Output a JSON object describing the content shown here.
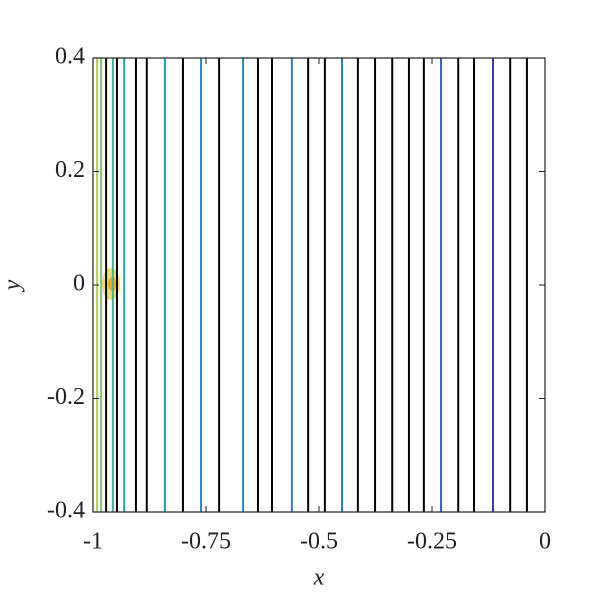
{
  "chart_data": {
    "type": "contour",
    "x_label": "x",
    "y_label": "y",
    "xlim": [
      -1,
      0
    ],
    "ylim": [
      -0.4,
      0.4
    ],
    "xticks": [
      -1,
      -0.75,
      -0.5,
      -0.25,
      0
    ],
    "yticks": [
      -0.4,
      -0.2,
      0,
      0.2,
      0.4
    ],
    "lines": [
      {
        "x": -0.991,
        "color": "#b5d24a"
      },
      {
        "x": -0.982,
        "color": "#7cc86a"
      },
      {
        "x": -0.971,
        "color": "#000000"
      },
      {
        "x": -0.956,
        "color": "#3bb89a"
      },
      {
        "x": -0.947,
        "color": "#000000"
      },
      {
        "x": -0.931,
        "color": "#22a8a8"
      },
      {
        "x": -0.905,
        "color": "#000000"
      },
      {
        "x": -0.881,
        "color": "#000000"
      },
      {
        "x": -0.841,
        "color": "#1e9cb5"
      },
      {
        "x": -0.801,
        "color": "#000000"
      },
      {
        "x": -0.761,
        "color": "#2a88c8"
      },
      {
        "x": -0.721,
        "color": "#000000"
      },
      {
        "x": -0.668,
        "color": "#2a88c8"
      },
      {
        "x": -0.635,
        "color": "#000000"
      },
      {
        "x": -0.604,
        "color": "#000000"
      },
      {
        "x": -0.56,
        "color": "#2f7ccc"
      },
      {
        "x": -0.524,
        "color": "#000000"
      },
      {
        "x": -0.487,
        "color": "#000000"
      },
      {
        "x": -0.449,
        "color": "#2f76cc"
      },
      {
        "x": -0.414,
        "color": "#000000"
      },
      {
        "x": -0.376,
        "color": "#000000"
      },
      {
        "x": -0.338,
        "color": "#000000"
      },
      {
        "x": -0.301,
        "color": "#000000"
      },
      {
        "x": -0.268,
        "color": "#000000"
      },
      {
        "x": -0.23,
        "color": "#3366c4"
      },
      {
        "x": -0.192,
        "color": "#000000"
      },
      {
        "x": -0.157,
        "color": "#000000"
      },
      {
        "x": -0.115,
        "color": "#3b3aa8"
      },
      {
        "x": -0.077,
        "color": "#000000"
      },
      {
        "x": -0.04,
        "color": "#000000"
      }
    ]
  }
}
